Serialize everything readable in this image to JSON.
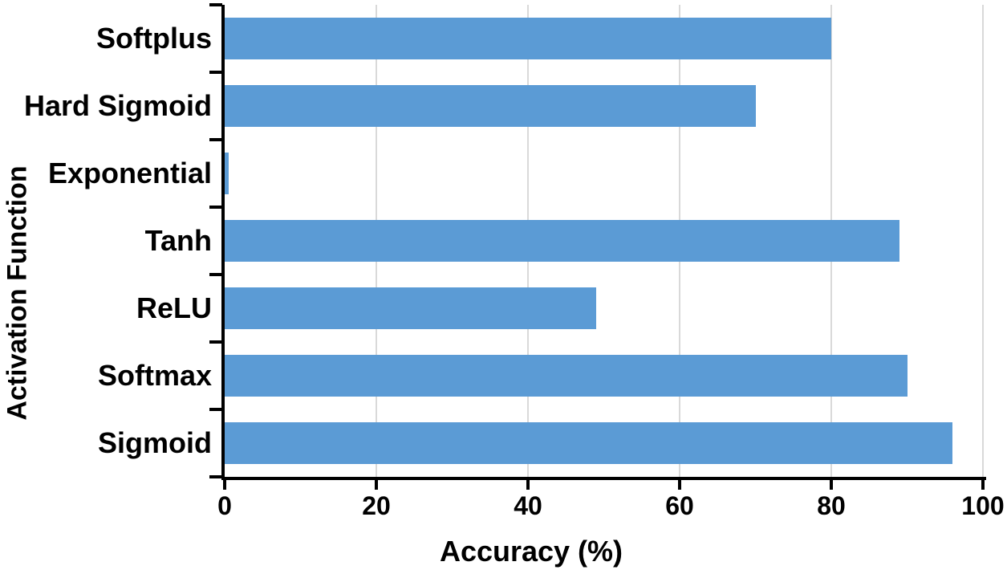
{
  "chart_data": {
    "type": "bar",
    "orientation": "horizontal",
    "title": "",
    "xlabel": "Accuracy (%)",
    "ylabel": "Activation Function",
    "categories": [
      "Softplus",
      "Hard Sigmoid",
      "Exponential",
      "Tanh",
      "ReLU",
      "Softmax",
      "Sigmoid"
    ],
    "values": [
      80,
      70,
      0.5,
      89,
      49,
      90,
      96
    ],
    "xlim": [
      0,
      100
    ],
    "xticks": [
      0,
      20,
      40,
      60,
      80,
      100
    ],
    "grid": true,
    "grid_orientation": "vertical",
    "legend_position": "none",
    "bar_color": "#5B9BD5",
    "gridline_color": "#D9D9D9",
    "axis_color": "#000000",
    "text_color": "#000000"
  }
}
